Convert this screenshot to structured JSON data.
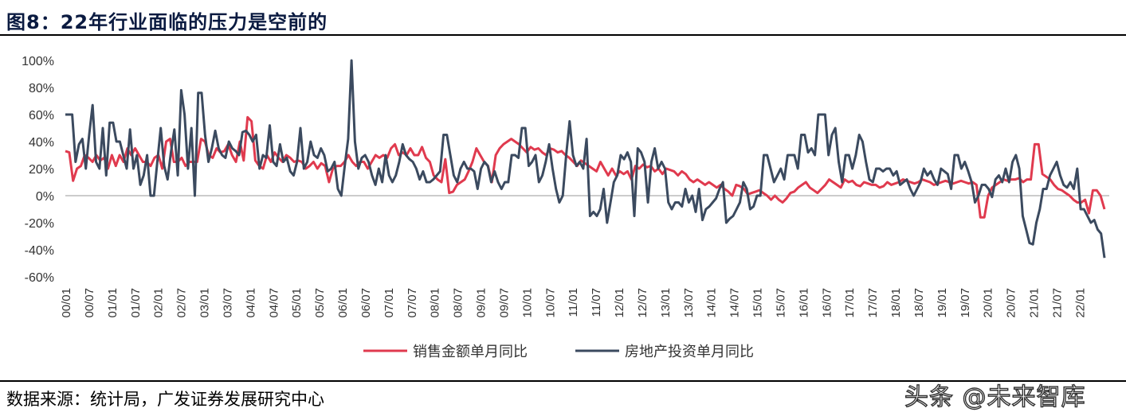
{
  "header": {
    "title": "图8：22年行业面临的压力是空前的"
  },
  "footer": {
    "source": "数据来源：统计局，广发证券发展研究中心",
    "watermark": "头条 @未来智库"
  },
  "chart_data": {
    "type": "line",
    "title": "",
    "xlabel": "",
    "ylabel": "",
    "ylim": [
      -60,
      100
    ],
    "yticks": [
      "100%",
      "80%",
      "60%",
      "40%",
      "20%",
      "0%",
      "-20%",
      "-40%",
      "-60%"
    ],
    "x_tick_labels": [
      "00/01",
      "00/07",
      "01/01",
      "01/07",
      "02/01",
      "02/07",
      "03/01",
      "03/07",
      "04/01",
      "04/07",
      "05/01",
      "05/07",
      "06/01",
      "06/07",
      "07/01",
      "07/07",
      "08/01",
      "08/07",
      "09/01",
      "09/07",
      "10/01",
      "10/07",
      "11/01",
      "11/07",
      "12/01",
      "12/07",
      "13/01",
      "13/07",
      "14/01",
      "14/07",
      "15/01",
      "15/07",
      "16/01",
      "16/07",
      "17/01",
      "17/07",
      "18/01",
      "18/07",
      "19/01",
      "19/07",
      "20/01",
      "20/07",
      "21/01",
      "21/07",
      "22/01"
    ],
    "legend_position": "bottom",
    "series": [
      {
        "name": "销售金额单月同比",
        "color": "#e03a4e",
        "values": [
          33,
          32,
          11,
          20,
          22,
          30,
          28,
          25,
          30,
          26,
          28,
          20,
          30,
          22,
          30,
          25,
          35,
          30,
          35,
          30,
          25,
          25,
          22,
          28,
          30,
          20,
          40,
          42,
          25,
          25,
          28,
          22,
          25,
          25,
          25,
          42,
          40,
          30,
          28,
          35,
          32,
          33,
          38,
          30,
          25,
          40,
          26,
          58,
          55,
          26,
          22,
          20,
          30,
          25,
          32,
          28,
          25,
          30,
          28,
          25,
          26,
          25,
          20,
          22,
          25,
          20,
          24,
          22,
          10,
          20,
          22,
          22,
          25,
          30,
          25,
          22,
          25,
          25,
          20,
          25,
          30,
          28,
          30,
          28,
          35,
          38,
          30,
          32,
          30,
          35,
          30,
          30,
          36,
          28,
          25,
          15,
          12,
          10,
          27,
          2,
          3,
          8,
          10,
          12,
          18,
          25,
          35,
          30,
          25,
          22,
          10,
          30,
          35,
          38,
          40,
          42,
          40,
          38,
          35,
          32,
          36,
          34,
          35,
          32,
          30,
          35,
          34,
          32,
          33,
          30,
          28,
          25,
          22,
          26,
          24,
          22,
          20,
          18,
          25,
          20,
          15,
          20,
          15,
          18,
          16,
          18,
          12,
          22,
          20,
          23,
          21,
          22,
          18,
          20,
          16,
          20,
          19,
          18,
          15,
          18,
          16,
          12,
          10,
          12,
          10,
          8,
          10,
          8,
          6,
          8,
          5,
          3,
          0,
          8,
          7,
          5,
          1,
          2,
          3,
          4,
          2,
          0,
          -3,
          0,
          -3,
          -5,
          -2,
          2,
          3,
          6,
          8,
          10,
          6,
          4,
          2,
          5,
          8,
          12,
          10,
          8,
          6,
          12,
          10,
          11,
          8,
          7,
          10,
          9,
          8,
          8,
          6,
          7,
          10,
          8,
          9,
          10,
          12,
          11,
          10,
          9,
          10,
          12,
          11,
          10,
          8,
          9,
          10,
          11,
          10,
          9,
          10,
          11,
          10,
          9,
          10,
          8,
          -16,
          -16,
          0,
          6,
          8,
          10,
          12,
          11,
          12,
          12,
          13,
          10,
          12,
          12,
          38,
          38,
          16,
          14,
          12,
          8,
          5,
          4,
          2,
          0,
          -3,
          -5,
          -5,
          -3,
          -13,
          4,
          4,
          0,
          -10
        ]
      },
      {
        "name": "房地产投资单月同比",
        "color": "#3b4a5f",
        "values": [
          60,
          60,
          60,
          25,
          38,
          42,
          20,
          45,
          67,
          25,
          20,
          50,
          15,
          54,
          54,
          40,
          40,
          30,
          20,
          49,
          20,
          30,
          8,
          15,
          30,
          0,
          0,
          25,
          50,
          22,
          12,
          32,
          49,
          15,
          78,
          60,
          20,
          50,
          0,
          76,
          76,
          45,
          25,
          35,
          48,
          35,
          30,
          28,
          40,
          35,
          33,
          30,
          47,
          48,
          45,
          40,
          45,
          20,
          30,
          28,
          52,
          25,
          22,
          38,
          25,
          28,
          18,
          15,
          25,
          50,
          20,
          25,
          40,
          30,
          28,
          35,
          30,
          18,
          20,
          25,
          5,
          0,
          22,
          42,
          100,
          40,
          20,
          28,
          30,
          25,
          15,
          8,
          20,
          10,
          30,
          15,
          10,
          15,
          25,
          38,
          30,
          27,
          25,
          20,
          12,
          18,
          10,
          10,
          12,
          15,
          18,
          45,
          45,
          30,
          15,
          10,
          20,
          25,
          20,
          20,
          18,
          5,
          20,
          25,
          22,
          10,
          18,
          10,
          5,
          10,
          10,
          30,
          30,
          28,
          50,
          50,
          22,
          25,
          30,
          10,
          15,
          25,
          38,
          20,
          5,
          -5,
          0,
          30,
          55,
          30,
          22,
          25,
          20,
          42,
          -15,
          -12,
          -15,
          -10,
          5,
          -20,
          -5,
          10,
          15,
          30,
          27,
          32,
          25,
          -15,
          35,
          32,
          25,
          -5,
          25,
          35,
          20,
          25,
          20,
          -5,
          -10,
          -5,
          -5,
          -8,
          5,
          -5,
          0,
          -12,
          5,
          -18,
          -10,
          -8,
          -5,
          -2,
          5,
          10,
          -20,
          -17,
          -15,
          -10,
          -5,
          10,
          5,
          -10,
          -8,
          0,
          0,
          30,
          30,
          20,
          10,
          15,
          20,
          12,
          30,
          30,
          30,
          20,
          45,
          45,
          32,
          35,
          30,
          60,
          60,
          60,
          30,
          45,
          50,
          25,
          10,
          30,
          30,
          20,
          30,
          45,
          40,
          25,
          12,
          10,
          20,
          20,
          18,
          20,
          20,
          15,
          18,
          8,
          10,
          12,
          5,
          0,
          5,
          10,
          20,
          15,
          18,
          12,
          8,
          20,
          18,
          16,
          5,
          30,
          30,
          20,
          25,
          18,
          10,
          -5,
          0,
          8,
          8,
          5,
          -1,
          12,
          15,
          10,
          20,
          10,
          25,
          30,
          20,
          -15,
          -25,
          -35,
          -36,
          -20,
          -10,
          5,
          5,
          15,
          20,
          25,
          15,
          8,
          6,
          10,
          5,
          20,
          -10,
          -10,
          -15,
          -20,
          -18,
          -25,
          -28,
          -46
        ]
      }
    ]
  }
}
